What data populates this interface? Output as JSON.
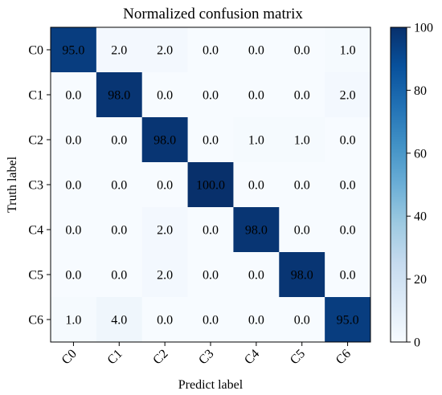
{
  "chart_data": {
    "type": "heatmap",
    "title": "Normalized confusion matrix",
    "xlabel": "Predict label",
    "ylabel": "Truth label",
    "x_categories": [
      "C0",
      "C1",
      "C2",
      "C3",
      "C4",
      "C5",
      "C6"
    ],
    "y_categories": [
      "C0",
      "C1",
      "C2",
      "C3",
      "C4",
      "C5",
      "C6"
    ],
    "values": [
      [
        95.0,
        2.0,
        2.0,
        0.0,
        0.0,
        0.0,
        1.0
      ],
      [
        0.0,
        98.0,
        0.0,
        0.0,
        0.0,
        0.0,
        2.0
      ],
      [
        0.0,
        0.0,
        98.0,
        0.0,
        1.0,
        1.0,
        0.0
      ],
      [
        0.0,
        0.0,
        0.0,
        100.0,
        0.0,
        0.0,
        0.0
      ],
      [
        0.0,
        0.0,
        2.0,
        0.0,
        98.0,
        0.0,
        0.0
      ],
      [
        0.0,
        0.0,
        2.0,
        0.0,
        0.0,
        98.0,
        0.0
      ],
      [
        1.0,
        4.0,
        0.0,
        0.0,
        0.0,
        0.0,
        95.0
      ]
    ],
    "colorbar": {
      "min": 0,
      "max": 100,
      "ticks": [
        0,
        20,
        40,
        60,
        80,
        100
      ]
    },
    "colormap": [
      "#f7fbff",
      "#deebf7",
      "#c6dbef",
      "#9ecae1",
      "#6baed6",
      "#4292c6",
      "#2171b5",
      "#08519c",
      "#08306b"
    ],
    "text_color_dark": "#000000",
    "text_color_light": "#ffffff"
  }
}
